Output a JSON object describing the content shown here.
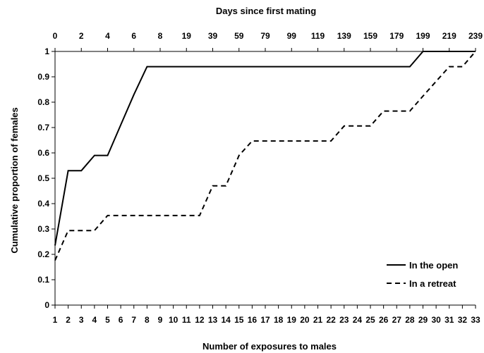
{
  "chart_data": {
    "type": "line",
    "xlabel": "Number of exposures to males",
    "ylabel": "Cumulative proportion of females",
    "top_axis_label": "Days since first mating",
    "x": [
      1,
      2,
      3,
      4,
      5,
      6,
      7,
      8,
      9,
      10,
      11,
      12,
      13,
      14,
      15,
      16,
      17,
      18,
      19,
      20,
      21,
      22,
      23,
      24,
      25,
      26,
      27,
      28,
      29,
      30,
      31,
      32,
      33
    ],
    "x_ticks": [
      "1",
      "2",
      "3",
      "4",
      "5",
      "6",
      "7",
      "8",
      "9",
      "10",
      "11",
      "12",
      "13",
      "14",
      "15",
      "16",
      "17",
      "18",
      "19",
      "20",
      "21",
      "22",
      "23",
      "24",
      "25",
      "26",
      "27",
      "28",
      "29",
      "30",
      "31",
      "32",
      "33"
    ],
    "top_ticks": [
      "0",
      "2",
      "4",
      "6",
      "8",
      "19",
      "39",
      "59",
      "79",
      "99",
      "119",
      "139",
      "159",
      "179",
      "199",
      "219",
      "239"
    ],
    "y_ticks": [
      "0",
      "0.1",
      "0.2",
      "0.3",
      "0.4",
      "0.5",
      "0.6",
      "0.7",
      "0.8",
      "0.9",
      "1"
    ],
    "ylim": [
      0,
      1
    ],
    "xlim": [
      1,
      33
    ],
    "grid": false,
    "legend_position": "bottom-right",
    "series": [
      {
        "name": "In the open",
        "style": "solid",
        "color": "#000000",
        "values": [
          0.235,
          0.53,
          0.53,
          0.59,
          0.59,
          0.71,
          0.83,
          0.94,
          0.94,
          0.94,
          0.94,
          0.94,
          0.94,
          0.94,
          0.94,
          0.94,
          0.94,
          0.94,
          0.94,
          0.94,
          0.94,
          0.94,
          0.94,
          0.94,
          0.94,
          0.94,
          0.94,
          0.94,
          1.0,
          1.0,
          1.0,
          1.0,
          1.0
        ]
      },
      {
        "name": "In a retreat",
        "style": "dashed",
        "color": "#000000",
        "values": [
          0.176,
          0.294,
          0.294,
          0.294,
          0.353,
          0.353,
          0.353,
          0.353,
          0.353,
          0.353,
          0.353,
          0.353,
          0.47,
          0.47,
          0.59,
          0.647,
          0.647,
          0.647,
          0.647,
          0.647,
          0.647,
          0.647,
          0.706,
          0.706,
          0.706,
          0.765,
          0.765,
          0.765,
          0.824,
          0.882,
          0.94,
          0.94,
          1.0
        ]
      }
    ]
  }
}
